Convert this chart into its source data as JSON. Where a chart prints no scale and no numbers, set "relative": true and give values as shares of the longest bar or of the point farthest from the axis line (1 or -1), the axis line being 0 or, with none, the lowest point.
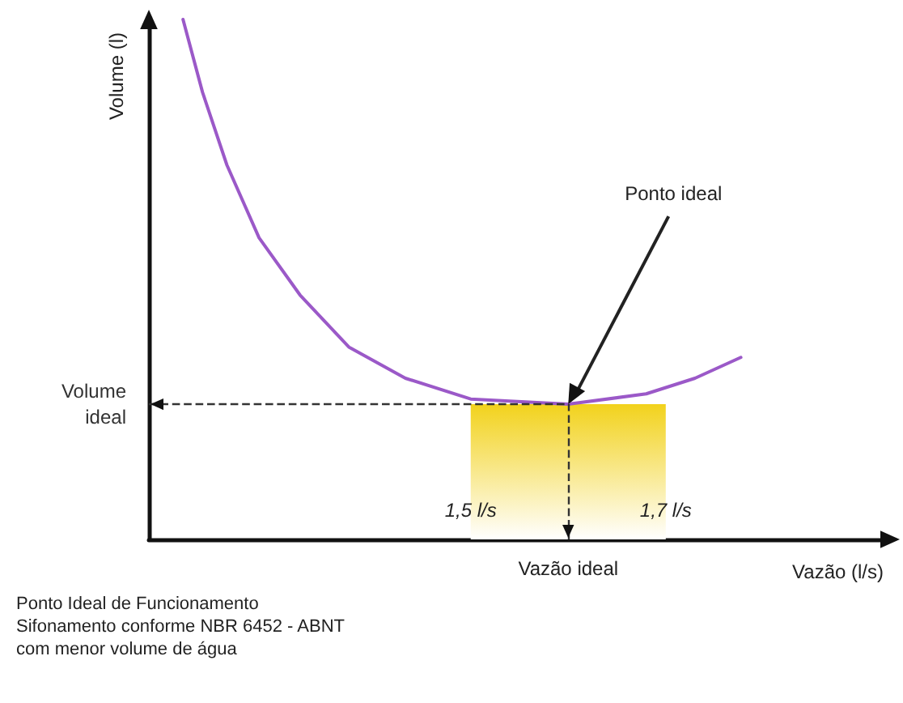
{
  "chart_data": {
    "type": "line",
    "relative": true,
    "xlabel": "Vazão (l/s)",
    "ylabel": "Volume (l)",
    "x": [
      1.205,
      1.225,
      1.25,
      1.283,
      1.325,
      1.375,
      1.433,
      1.5,
      1.6,
      1.68,
      1.73,
      1.777
    ],
    "series": [
      {
        "color": "#9b59c8",
        "values": [
          1.0,
          0.86,
          0.72,
          0.58,
          0.47,
          0.37,
          0.31,
          0.27,
          0.26,
          0.28,
          0.31,
          0.35
        ]
      }
    ],
    "xlim": [
      1.17,
      1.93
    ],
    "xticks": [
      {
        "value": 1.5,
        "label": "1,5 l/s"
      },
      {
        "value": 1.7,
        "label": "1,7 l/s"
      }
    ],
    "ref_lines": [
      {
        "axis": "y",
        "value": 0.26,
        "label": "Volume\nideal",
        "line_style": "dashed",
        "color": "#333333"
      },
      {
        "axis": "x",
        "value": 1.6,
        "label": "Vazão ideal",
        "line_style": "dashed",
        "color": "#333333"
      }
    ],
    "bands": [
      {
        "axis": "x",
        "from": 1.5,
        "to": 1.7,
        "color": "#f2d21c",
        "label": null
      }
    ],
    "annotations": [
      "Ponto ideal",
      "Ponto Ideal de Funcionamento\nSifonamento conforme NBR 6452 - ABNT\ncom menor volume de água"
    ],
    "grid": false,
    "marker": "none",
    "line_style": "solid"
  }
}
